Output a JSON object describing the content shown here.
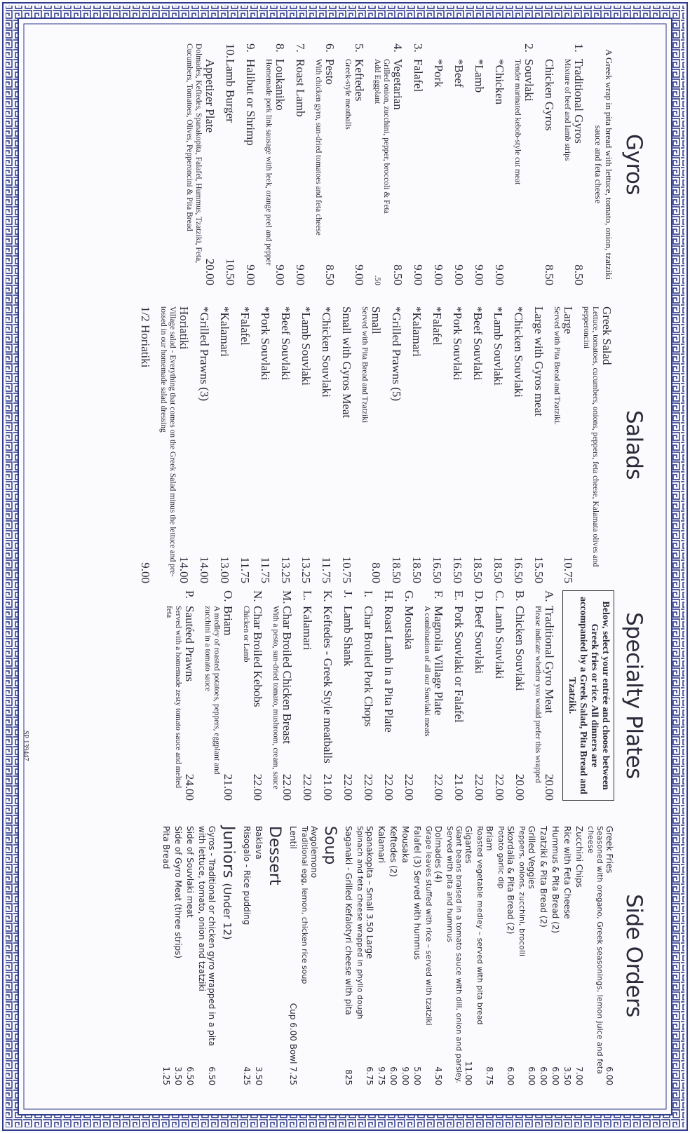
{
  "colors": {
    "border": "#2e3a8c",
    "text": "#2a2a3a"
  },
  "gyros": {
    "title": "Gyros",
    "intro": "A Greek wrap in pita bread with lettuce, tomato, onion, tzatziki sauce and feta cheese",
    "items": [
      {
        "num": "1.",
        "name": "Traditional Gyros",
        "price": "8.50",
        "desc": "Mixture of beef and lamb strips"
      },
      {
        "num": "",
        "name": "Chicken Gyros",
        "price": "8.50"
      },
      {
        "num": "2.",
        "name": "Souvlaki",
        "price": "",
        "desc": "Tender marinated kebob-style cut meat"
      },
      {
        "num": "",
        "name": "*Chicken",
        "price": "9.00"
      },
      {
        "num": "",
        "name": "*Lamb",
        "price": "9.00"
      },
      {
        "num": "",
        "name": "*Beef",
        "price": "9.00"
      },
      {
        "num": "",
        "name": "*Pork",
        "price": "9.00"
      },
      {
        "num": "3.",
        "name": "Falafel",
        "price": "9.00"
      },
      {
        "num": "4.",
        "name": "Vegetarian",
        "price": "8.50",
        "desc": "Grilled onion, zucchini, pepper, broccoli & Feta",
        "desc2": "Add Eggplant",
        "price2": ".50"
      },
      {
        "num": "5.",
        "name": "Keftedes",
        "price": "9.00",
        "desc": "Greek-style meatballs"
      },
      {
        "num": "6.",
        "name": "Pesto",
        "price": "8.50",
        "desc": "With chicken gyro, sun-dried tomatoes and feta cheese"
      },
      {
        "num": "7.",
        "name": "Roast Lamb",
        "price": "9.00"
      },
      {
        "num": "8.",
        "name": "Loukaniko",
        "price": "9.00",
        "desc": "Homemade pork link sausage with leek, orange peel and pepper"
      },
      {
        "num": "9.",
        "name": "Halibut or Shrimp",
        "price": "9.00"
      },
      {
        "num": "10.",
        "name": "Lamb Burger",
        "price": "10.50"
      },
      {
        "num": "",
        "name": "Appetizer Plate",
        "price": "20.00",
        "desc": "Dolmades, Keftedes, Spanakopita, Falafel, Hummus, Tzatziki, Feta, Cucumbers, Tomatoes, Olives, Pepperoncini & Pita Bread"
      }
    ]
  },
  "salads": {
    "title": "Salads",
    "items": [
      {
        "name": "Greek Salad",
        "price": "",
        "desc": "Lettuce, tomatoes, cucumbers, onions, peppers, feta cheese, Kalamata olives and pepperoncini"
      },
      {
        "name": "Large",
        "price": "10.75",
        "desc": "Served with Pita Bread and Tzatziki."
      },
      {
        "name": "Large with Gyros meat",
        "price": "15.50"
      },
      {
        "name": "*Chicken Souvlaki",
        "price": "16.50"
      },
      {
        "name": "*Lamb Souvlaki",
        "price": "18.50"
      },
      {
        "name": "*Beef Souvlaki",
        "price": "18.50"
      },
      {
        "name": "*Pork Souvlaki",
        "price": "16.50"
      },
      {
        "name": "*Falafel",
        "price": "16.50"
      },
      {
        "name": "*Kalamari",
        "price": "18.50"
      },
      {
        "name": "*Grilled Prawns (5)",
        "price": "18.50"
      },
      {
        "name": "Small",
        "price": "8.00",
        "desc": "Served with Pita Bread and Tzatziki"
      },
      {
        "name": "Small with Gyros Meat",
        "price": "10.75"
      },
      {
        "name": "*Chicken Souvlaki",
        "price": "11.75"
      },
      {
        "name": "*Lamb Souvlaki",
        "price": "13.25"
      },
      {
        "name": "*Beef Souvlaki",
        "price": "13.25"
      },
      {
        "name": "*Pork Souvlaki",
        "price": "11.75"
      },
      {
        "name": "*Falafel",
        "price": "11.75"
      },
      {
        "name": "*Kalamari",
        "price": "13.00"
      },
      {
        "name": "*Grilled Prawns (3)",
        "price": "14.00"
      },
      {
        "name": "Horiatiki",
        "price": "14.00",
        "desc": "Village salad - Everything that comes on the Greek Salad minus the lettuce and pre-tossed in our homemade salad dressing"
      },
      {
        "name": "1/2 Horiatiki",
        "price": "9.00"
      }
    ]
  },
  "specialty": {
    "title": "Specialty Plates",
    "note": "Below, select your entrée and choose between Greek fries or rice. All dinners are accompanied by a Greek Salad, Pita Bread and Tzatziki.",
    "items": [
      {
        "num": "A.",
        "name": "Traditional Gyro Meat",
        "price": "20.00",
        "desc": "Please indicate whether you would prefer this wrapped"
      },
      {
        "num": "B.",
        "name": "Chicken Souvlaki",
        "price": "20.00"
      },
      {
        "num": "C.",
        "name": "Lamb Souvlaki",
        "price": "22.00"
      },
      {
        "num": "D.",
        "name": "Beef Souvlaki",
        "price": "22.00"
      },
      {
        "num": "E.",
        "name": "Pork Souvlaki or Falafel",
        "price": "21.00"
      },
      {
        "num": "F.",
        "name": "Magnolia Village Plate",
        "price": "22.00",
        "desc": "A combination of all our Souvlaki meats"
      },
      {
        "num": "G.",
        "name": "Mousaka",
        "price": "22.00"
      },
      {
        "num": "H.",
        "name": "Roast Lamb in a Pita Plate",
        "price": "22.00"
      },
      {
        "num": "I.",
        "name": "Char Broiled Pork Chops",
        "price": "22.00"
      },
      {
        "num": "J.",
        "name": "Lamb Shank",
        "price": "22.00"
      },
      {
        "num": "K.",
        "name": "Keftedes - Greek Style meatballs",
        "price": "21.00"
      },
      {
        "num": "L.",
        "name": "Kalamari",
        "price": "22.00"
      },
      {
        "num": "M.",
        "name": "Char Broiled Chicken Breast",
        "price": "22.00",
        "desc": "With a pesto, sun-dried tomato, mushroom, cream, sauce"
      },
      {
        "num": "N.",
        "name": "Char Broiled Kebobs",
        "price": "22.00",
        "desc": "Chicken or Lamb"
      },
      {
        "num": "O.",
        "name": "Briam",
        "price": "21.00",
        "desc": "A medley of roasted potatoes, peppers, eggplant and zucchini in a tomato sauce"
      },
      {
        "num": "P.",
        "name": "Sautéed Prawns",
        "price": "24.00",
        "desc": "Served with a homemade zesty tomato sauce and melted feta"
      }
    ],
    "footer": "SP 139447"
  },
  "sides": {
    "title": "Side Orders",
    "items": [
      {
        "name": "Greek Fries",
        "price": "6.00",
        "desc": "Seasoned with oregano, Greek seasonings, lemon juice and feta cheese"
      },
      {
        "name": "Zucchini Chips",
        "price": "7.00"
      },
      {
        "name": "Rice with Feta Cheese",
        "price": "3.50"
      },
      {
        "name": "Hummus & Pita Bread (2)",
        "price": "6.00"
      },
      {
        "name": "Tzatziki & Pita Bread (2)",
        "price": "6.00"
      },
      {
        "name": "Grilled Veggies",
        "price": "6.00",
        "desc": "Peppers, onions, zucchini, brocolli"
      },
      {
        "name": "Skordalia & Pita Bread (2)",
        "price": "6.00",
        "desc": "Potato garlic dip"
      },
      {
        "name": "Briam",
        "price": "8.75",
        "desc": "Roasted vegetable medley – served with pita bread"
      },
      {
        "name": "Gigantes",
        "price": "11.00",
        "desc": "Giant beans braised in a tomato sauce with dill, onion and parsley. Served with pita and hummus"
      },
      {
        "name": "Dolmades (4)",
        "price": "4.50",
        "desc": "Grape leaves stuffed with rice – served with tzatziki"
      },
      {
        "name": "Falafel (3) Served with hummus",
        "price": "5.00"
      },
      {
        "name": "Mousaka",
        "price": "9.00"
      },
      {
        "name": "Keftedes (2)",
        "price": "6.00"
      },
      {
        "name": "Kalamari",
        "price": "9.75"
      },
      {
        "name": "Spanakopita – Small 3.50   Large",
        "price": "6.75",
        "desc": "Spinach and feta cheese wrapped in phyllo dough"
      },
      {
        "name": "Saganaki - Grilled Kefalotyri cheese with pita",
        "price": "825"
      }
    ],
    "soup": {
      "title": "Soup",
      "items": [
        {
          "name": "Avgolemono",
          "price": "",
          "desc": "Traditional egg, lemon, chicken rice soup"
        },
        {
          "name": "Lentil",
          "price": "Cup 6.00   Bowl 7.25"
        }
      ]
    },
    "dessert": {
      "title": "Dessert",
      "items": [
        {
          "name": "Baklava",
          "price": "3.50"
        },
        {
          "name": "Risogalo - Rice pudding",
          "price": "4.25"
        }
      ]
    },
    "juniors": {
      "title": "Juniors",
      "subtitle": "(Under 12)",
      "items": [
        {
          "name": "Gyros - Traditional or chicken gyro wrapped in a pita with lettuce, tomato, onion and tzatziki",
          "price": "6.50"
        },
        {
          "name": "Side of Souvlaki meat",
          "price": "6.50"
        },
        {
          "name": "Side of Gyro Meat (three strips)",
          "price": "3.50"
        },
        {
          "name": "Pita Bread",
          "price": "1.25"
        }
      ]
    }
  }
}
